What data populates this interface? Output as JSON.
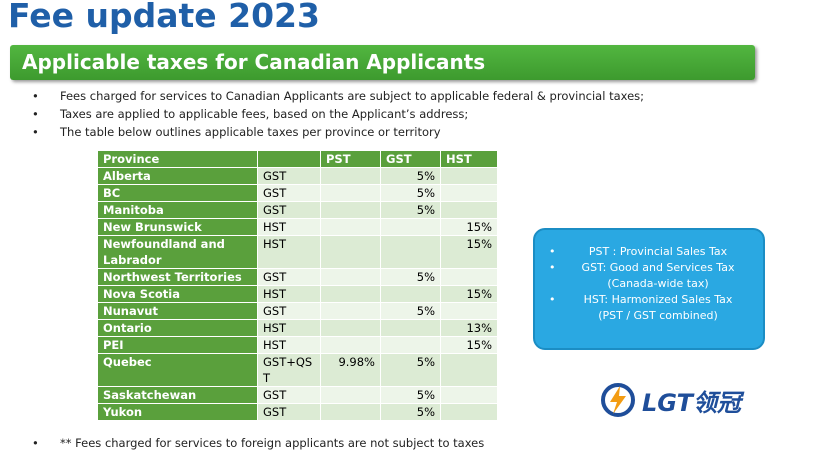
{
  "header": {
    "title": "Fee update 2023",
    "banner": "Applicable taxes for Canadian Applicants"
  },
  "bullets": [
    "Fees charged for services to Canadian Applicants are subject to applicable federal & provincial taxes;",
    "Taxes are applied to applicable fees, based on the Applicant’s address;",
    "The table below outlines applicable taxes per province or territory"
  ],
  "table": {
    "header": [
      "Province",
      null,
      "PST",
      "GST",
      "HST"
    ],
    "rows": [
      [
        "Alberta",
        "GST",
        null,
        "5%",
        null
      ],
      [
        "BC",
        "GST",
        null,
        "5%",
        null
      ],
      [
        "Manitoba",
        "GST",
        null,
        "5%",
        null
      ],
      [
        "New Brunswick",
        "HST",
        null,
        null,
        "15%"
      ],
      [
        "Newfoundland and Labrador",
        "HST",
        null,
        null,
        "15%"
      ],
      [
        "Northwest Territories",
        "GST",
        null,
        "5%",
        null
      ],
      [
        "Nova Scotia",
        "HST",
        null,
        null,
        "15%"
      ],
      [
        "Nunavut",
        "GST",
        null,
        "5%",
        null
      ],
      [
        "Ontario",
        "HST",
        null,
        null,
        "13%"
      ],
      [
        "PEI",
        "HST",
        null,
        null,
        "15%"
      ],
      [
        "Quebec",
        "GST+QST",
        "9.98%",
        "5%",
        null
      ],
      [
        "Saskatchewan",
        "GST",
        null,
        "5%",
        null
      ],
      [
        "Yukon",
        "GST",
        null,
        "5%",
        null
      ]
    ]
  },
  "legend": [
    {
      "label": "PST : Provincial Sales Tax"
    },
    {
      "label": "GST: Good and Services Tax",
      "note": "(Canada-wide tax)"
    },
    {
      "label": "HST: Harmonized Sales Tax",
      "note": "(PST / GST combined)"
    }
  ],
  "footnote": "** Fees charged for services to foreign applicants are not subject to taxes",
  "logo": "LGT领冠"
}
